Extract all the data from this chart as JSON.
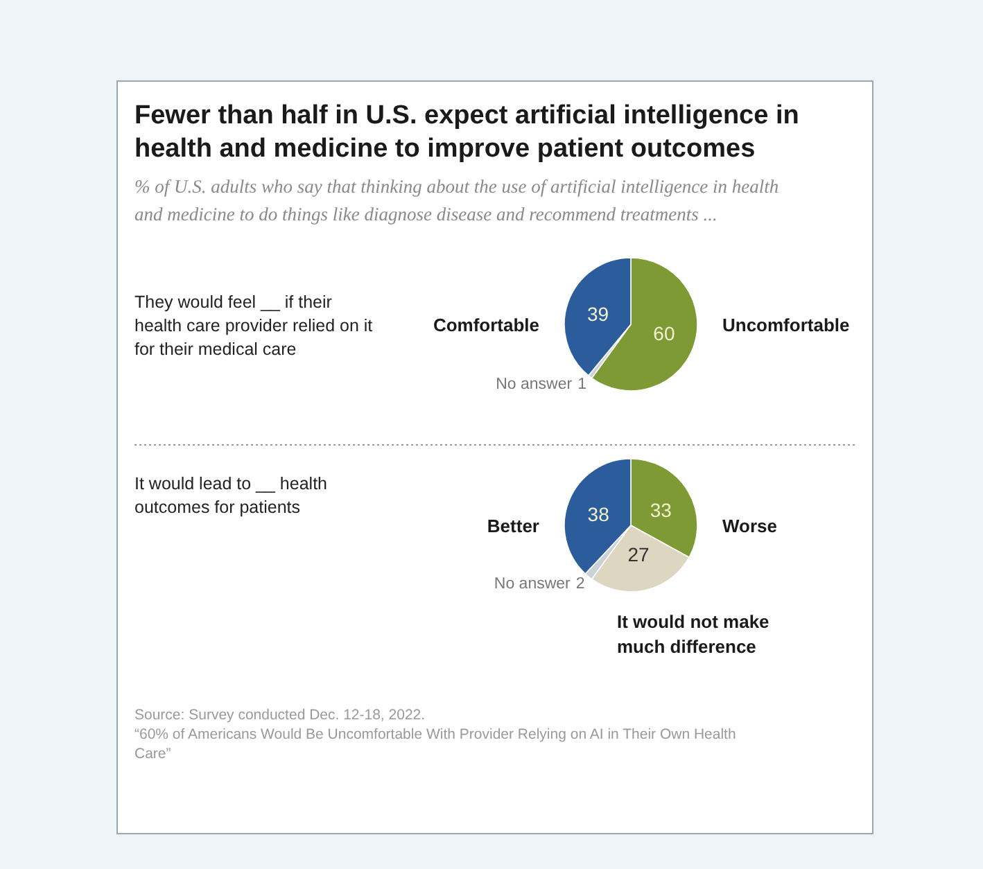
{
  "chart_data": [
    {
      "type": "pie",
      "title": "Fewer than half in U.S. expect artificial intelligence in health and medicine to improve patient outcomes",
      "subtitle": "% of U.S. adults who say that thinking about the use of artificial intelligence in health and medicine to do things like diagnose disease and recommend treatments ...",
      "annotations": [
        "They would feel __ if their health care provider relied on it for their medical care"
      ],
      "categories": [
        "Uncomfortable",
        "No answer",
        "Comfortable"
      ],
      "values": [
        60,
        1,
        39
      ],
      "colors": [
        "#7d9a35",
        "#c9d1d9",
        "#2b5c9b"
      ],
      "data_labels": true
    },
    {
      "type": "pie",
      "annotations": [
        "It would lead to __ health outcomes for patients",
        "Source: Survey conducted Dec. 12-18, 2022.",
        "“60% of Americans Would Be Uncomfortable With Provider Relying on AI in Their Own Health Care”"
      ],
      "categories": [
        "Worse",
        "It would not make much difference",
        "No answer",
        "Better"
      ],
      "values": [
        33,
        27,
        2,
        38
      ],
      "colors": [
        "#7d9a35",
        "#ddd7c2",
        "#c9d1d9",
        "#2b5c9b"
      ],
      "data_labels": true
    }
  ]
}
